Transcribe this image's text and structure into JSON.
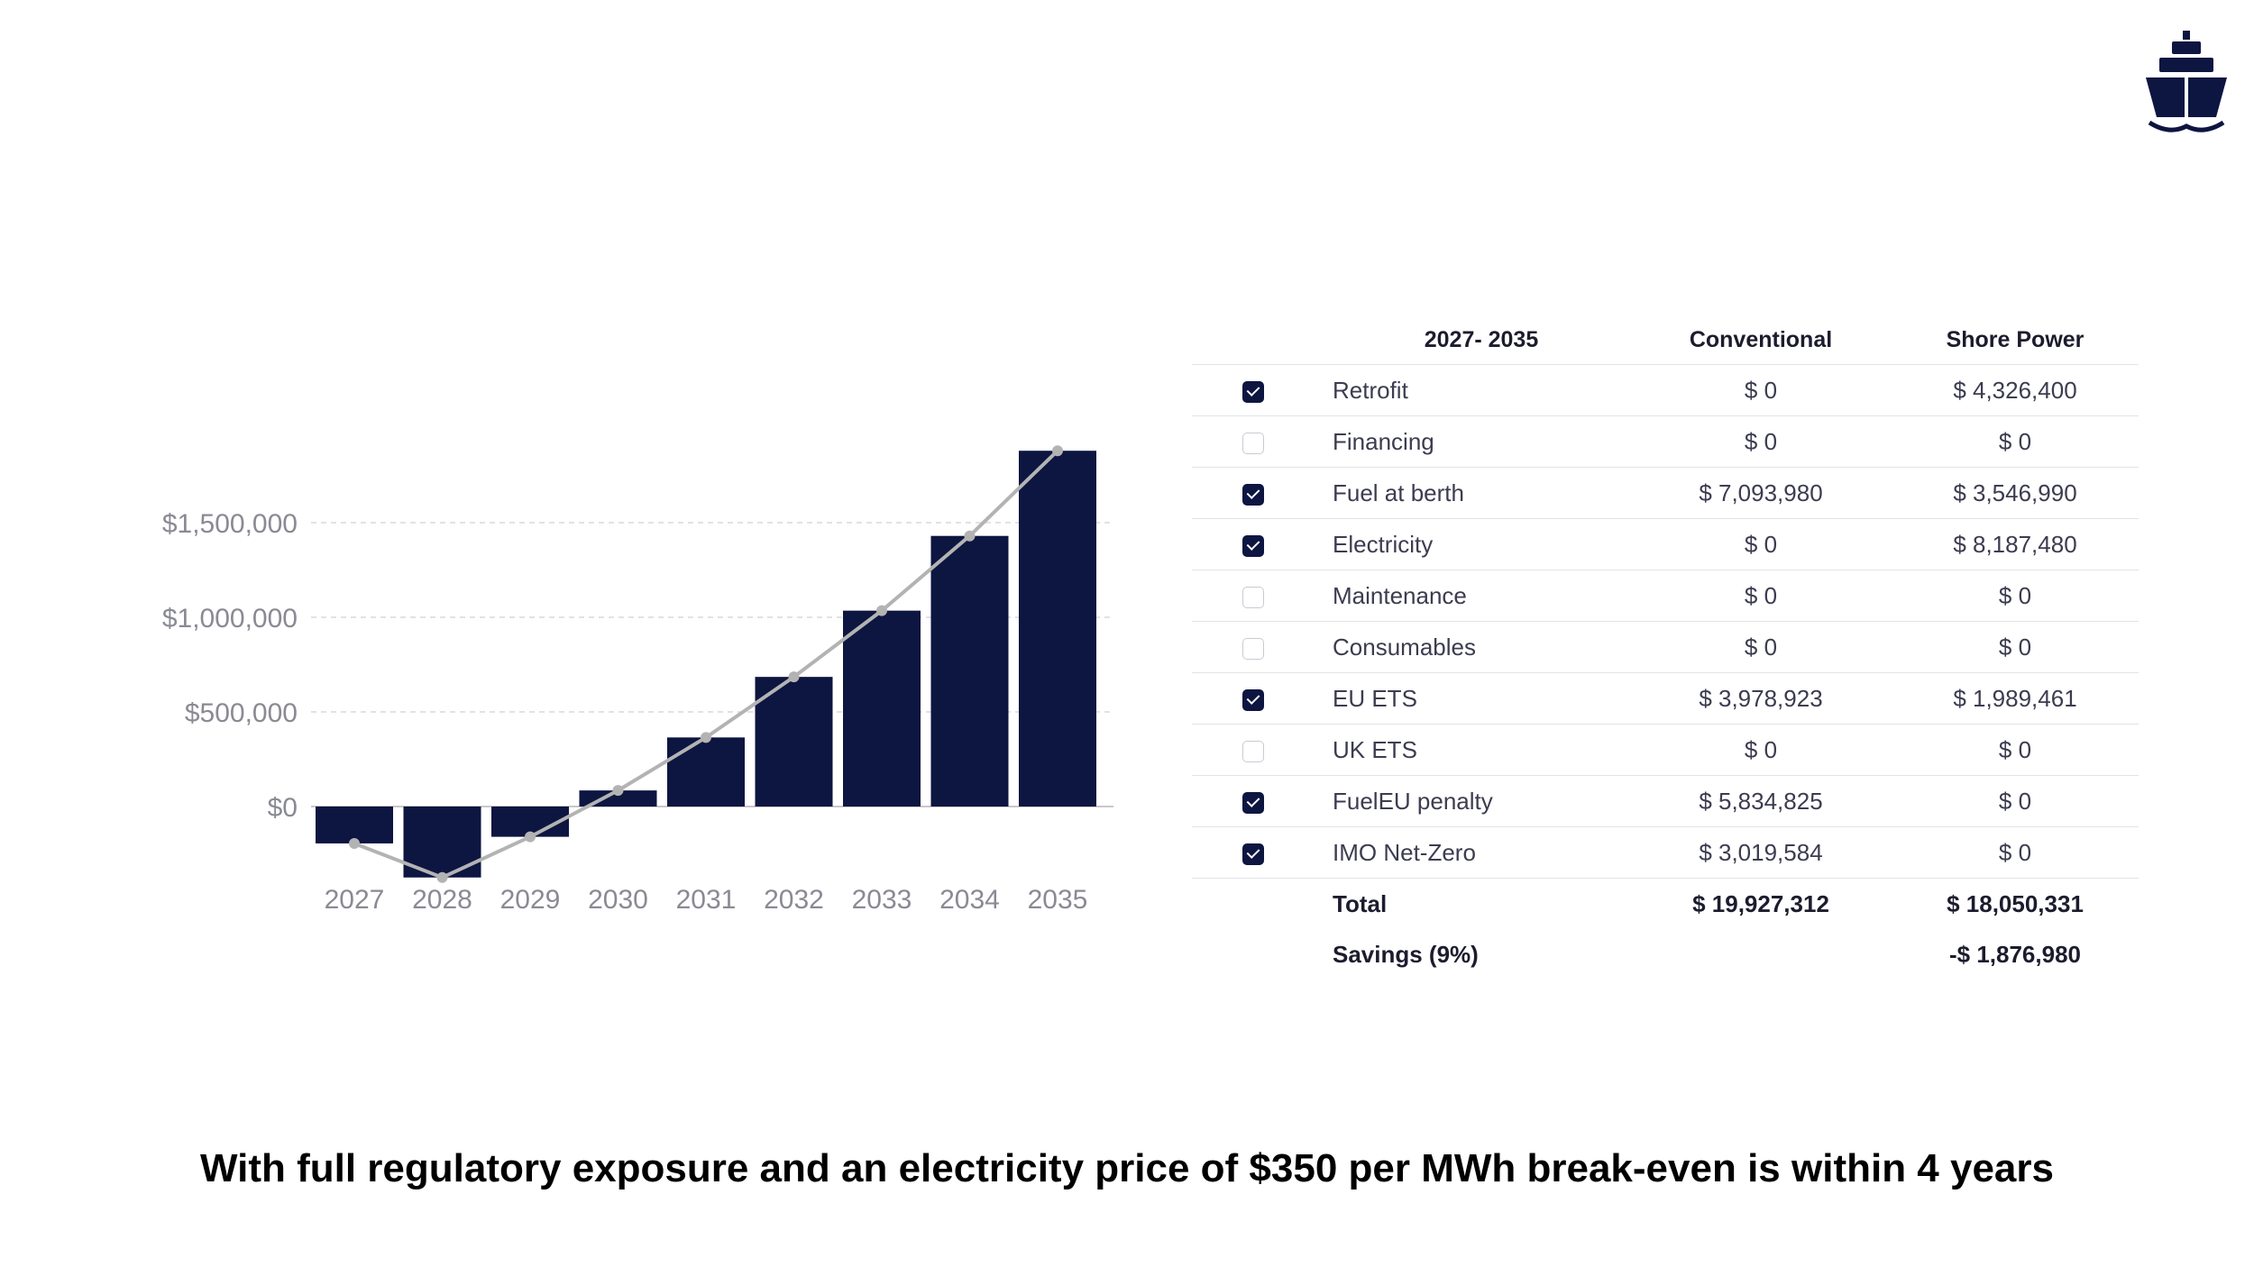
{
  "logo": {
    "icon": "ship-icon",
    "color": "#0d1541"
  },
  "chart_data": {
    "type": "bar",
    "categories": [
      "2027",
      "2028",
      "2029",
      "2030",
      "2031",
      "2032",
      "2033",
      "2034",
      "2035"
    ],
    "series": [
      {
        "type": "bar",
        "values": [
          -195000,
          -375000,
          -160000,
          85000,
          365000,
          685000,
          1035000,
          1430000,
          1880000
        ],
        "color": "#0d1541"
      },
      {
        "type": "line",
        "values": [
          -195000,
          -375000,
          -160000,
          85000,
          365000,
          685000,
          1035000,
          1430000,
          1880000
        ],
        "color": "#b3b3b3"
      }
    ],
    "yticks": [
      {
        "value": 0,
        "label": "$0"
      },
      {
        "value": 500000,
        "label": "$500,000"
      },
      {
        "value": 1000000,
        "label": "$1,000,000"
      },
      {
        "value": 1500000,
        "label": "$1,500,000"
      }
    ],
    "ylim": [
      -400000,
      1900000
    ],
    "grid": true,
    "title": "",
    "xlabel": "",
    "ylabel": ""
  },
  "table": {
    "headers": {
      "period": "2027- 2035",
      "conventional": "Conventional",
      "shore_power": "Shore Power"
    },
    "rows": [
      {
        "label": "Retrofit",
        "checked": true,
        "conventional": "$ 0",
        "shore_power": "$ 4,326,400"
      },
      {
        "label": "Financing",
        "checked": false,
        "conventional": "$ 0",
        "shore_power": "$ 0"
      },
      {
        "label": "Fuel at berth",
        "checked": true,
        "conventional": "$ 7,093,980",
        "shore_power": "$ 3,546,990"
      },
      {
        "label": "Electricity",
        "checked": true,
        "conventional": "$ 0",
        "shore_power": "$ 8,187,480"
      },
      {
        "label": "Maintenance",
        "checked": false,
        "conventional": "$ 0",
        "shore_power": "$ 0"
      },
      {
        "label": "Consumables",
        "checked": false,
        "conventional": "$ 0",
        "shore_power": "$ 0"
      },
      {
        "label": "EU ETS",
        "checked": true,
        "conventional": "$ 3,978,923",
        "shore_power": "$ 1,989,461"
      },
      {
        "label": "UK ETS",
        "checked": false,
        "conventional": "$ 0",
        "shore_power": "$ 0"
      },
      {
        "label": "FuelEU penalty",
        "checked": true,
        "conventional": "$ 5,834,825",
        "shore_power": "$ 0"
      },
      {
        "label": "IMO Net-Zero",
        "checked": true,
        "conventional": "$ 3,019,584",
        "shore_power": "$ 0"
      }
    ],
    "total": {
      "label": "Total",
      "conventional": "$ 19,927,312",
      "shore_power": "$ 18,050,331"
    },
    "savings": {
      "label": "Savings (9%)",
      "shore_power": "-$ 1,876,980"
    }
  },
  "caption": "With full regulatory exposure and an electricity price of $350 per MWh break-even is within 4 years"
}
